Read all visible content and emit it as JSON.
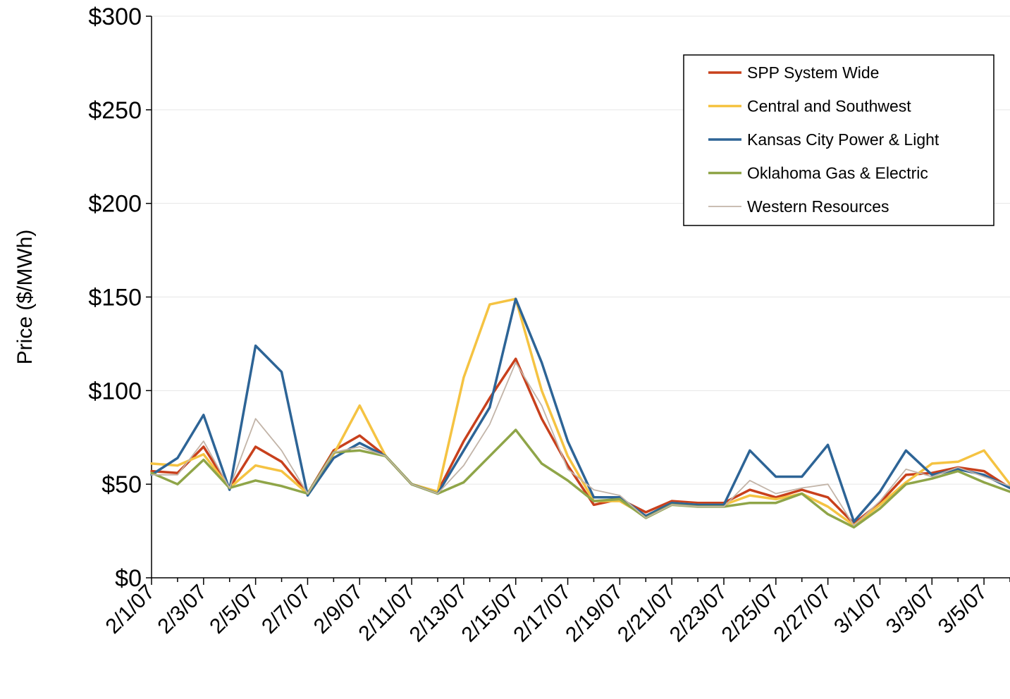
{
  "chart_data": {
    "type": "line",
    "title": "",
    "xlabel": "",
    "ylabel": "Price ($/MWh)",
    "ylim": [
      0,
      300
    ],
    "yticks": [
      0,
      50,
      100,
      150,
      200,
      250,
      300
    ],
    "ytick_labels": [
      "$0",
      "$50",
      "$100",
      "$150",
      "$200",
      "$250",
      "$300"
    ],
    "xtick_labels": [
      "2/1/07",
      "2/3/07",
      "2/5/07",
      "2/7/07",
      "2/9/07",
      "2/11/07",
      "2/13/07",
      "2/15/07",
      "2/17/07",
      "2/19/07",
      "2/21/07",
      "2/23/07",
      "2/25/07",
      "2/27/07",
      "3/1/07",
      "3/3/07",
      "3/5/07"
    ],
    "x": [
      "2/1/07",
      "2/2/07",
      "2/3/07",
      "2/4/07",
      "2/5/07",
      "2/6/07",
      "2/7/07",
      "2/8/07",
      "2/9/07",
      "2/10/07",
      "2/11/07",
      "2/12/07",
      "2/13/07",
      "2/14/07",
      "2/15/07",
      "2/16/07",
      "2/17/07",
      "2/18/07",
      "2/19/07",
      "2/20/07",
      "2/21/07",
      "2/22/07",
      "2/23/07",
      "2/24/07",
      "2/25/07",
      "2/26/07",
      "2/27/07",
      "2/28/07",
      "3/1/07",
      "3/2/07",
      "3/3/07",
      "3/4/07",
      "3/5/07",
      "3/6/07"
    ],
    "grid": true,
    "legend_position": "top-right",
    "series": [
      {
        "name": "SPP System Wide",
        "color": "#c8401c",
        "values": [
          57,
          56,
          70,
          48,
          70,
          62,
          45,
          68,
          76,
          65,
          50,
          46,
          73,
          96,
          117,
          85,
          60,
          39,
          42,
          35,
          41,
          40,
          40,
          47,
          43,
          47,
          43,
          29,
          40,
          55,
          56,
          59,
          57,
          48
        ]
      },
      {
        "name": "Central and Southwest",
        "color": "#f5c342",
        "values": [
          61,
          60,
          66,
          48,
          60,
          57,
          45,
          66,
          92,
          65,
          50,
          46,
          107,
          146,
          149,
          100,
          65,
          41,
          41,
          33,
          40,
          39,
          39,
          44,
          42,
          45,
          38,
          28,
          39,
          51,
          61,
          62,
          68,
          50
        ]
      },
      {
        "name": "Kansas City Power & Light",
        "color": "#2d6496",
        "values": [
          55,
          64,
          87,
          47,
          124,
          110,
          44,
          64,
          72,
          65,
          50,
          45,
          68,
          91,
          149,
          115,
          73,
          43,
          43,
          33,
          40,
          39,
          39,
          68,
          54,
          54,
          71,
          30,
          46,
          68,
          55,
          58,
          55,
          48
        ]
      },
      {
        "name": "Oklahoma Gas & Electric",
        "color": "#8fa548",
        "values": [
          56,
          50,
          63,
          48,
          52,
          49,
          45,
          67,
          68,
          65,
          50,
          45,
          51,
          65,
          79,
          61,
          52,
          41,
          42,
          32,
          39,
          38,
          38,
          40,
          40,
          45,
          34,
          27,
          37,
          50,
          53,
          57,
          51,
          46
        ]
      },
      {
        "name": "Western Resources",
        "color": "#c2b4a8",
        "values": [
          55,
          55,
          73,
          48,
          85,
          68,
          45,
          67,
          70,
          65,
          50,
          45,
          60,
          82,
          115,
          92,
          58,
          47,
          44,
          32,
          39,
          38,
          38,
          52,
          45,
          48,
          50,
          28,
          41,
          58,
          54,
          59,
          54,
          49
        ]
      }
    ]
  }
}
